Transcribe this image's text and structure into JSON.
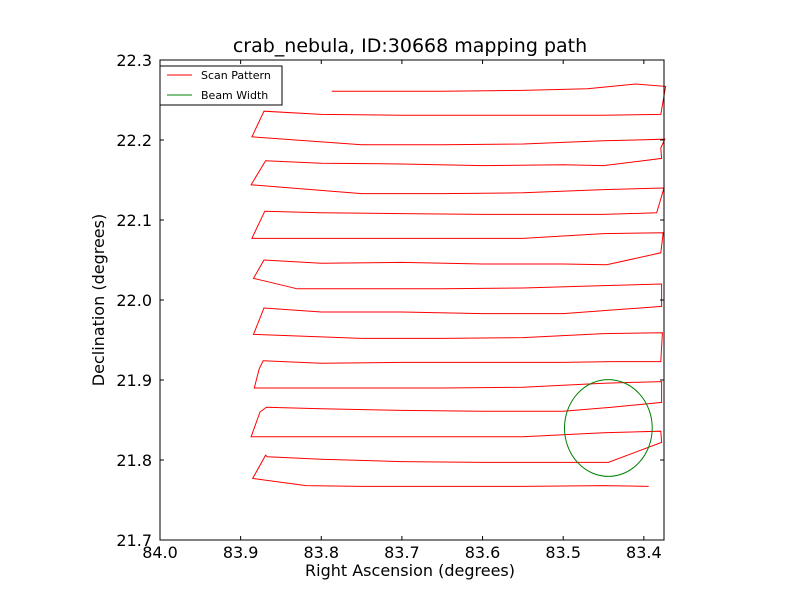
{
  "chart_data": {
    "type": "line",
    "title": "crab_nebula, ID:30668 mapping path",
    "xlabel": "Right Ascension (degrees)",
    "ylabel": "Declination (degrees)",
    "xlim": [
      84.0,
      83.375
    ],
    "ylim": [
      21.7,
      22.3
    ],
    "x_inverted": true,
    "xticks": [
      84.0,
      83.9,
      83.8,
      83.7,
      83.6,
      83.5,
      83.4
    ],
    "xtick_labels": [
      "84.0",
      "83.9",
      "83.8",
      "83.7",
      "83.6",
      "83.5",
      "83.4"
    ],
    "yticks": [
      21.7,
      21.8,
      21.9,
      22.0,
      22.1,
      22.2,
      22.3
    ],
    "ytick_labels": [
      "21.7",
      "21.8",
      "21.9",
      "22.0",
      "22.1",
      "22.2",
      "22.3"
    ],
    "grid": false,
    "legend": {
      "placement": "upper-left",
      "entries": [
        {
          "label": "Scan Pattern",
          "color": "#ff0000"
        },
        {
          "label": "Beam Width",
          "color": "#008000"
        }
      ]
    },
    "series": [
      {
        "name": "Scan Pattern",
        "color": "#ff0000",
        "points": [
          [
            83.394,
            21.767
          ],
          [
            83.45,
            21.768
          ],
          [
            83.55,
            21.767
          ],
          [
            83.65,
            21.767
          ],
          [
            83.75,
            21.767
          ],
          [
            83.819,
            21.768
          ],
          [
            83.885,
            21.777
          ],
          [
            83.869,
            21.806
          ],
          [
            83.867,
            21.804
          ],
          [
            83.8,
            21.801
          ],
          [
            83.7,
            21.798
          ],
          [
            83.6,
            21.797
          ],
          [
            83.5,
            21.797
          ],
          [
            83.444,
            21.797
          ],
          [
            83.378,
            21.822
          ],
          [
            83.379,
            21.836
          ],
          [
            83.45,
            21.834
          ],
          [
            83.55,
            21.829
          ],
          [
            83.65,
            21.829
          ],
          [
            83.75,
            21.829
          ],
          [
            83.887,
            21.829
          ],
          [
            83.876,
            21.86
          ],
          [
            83.868,
            21.866
          ],
          [
            83.8,
            21.864
          ],
          [
            83.7,
            21.862
          ],
          [
            83.6,
            21.861
          ],
          [
            83.5,
            21.861
          ],
          [
            83.44,
            21.866
          ],
          [
            83.378,
            21.872
          ],
          [
            83.378,
            21.898
          ],
          [
            83.45,
            21.896
          ],
          [
            83.55,
            21.891
          ],
          [
            83.65,
            21.89
          ],
          [
            83.75,
            21.89
          ],
          [
            83.883,
            21.89
          ],
          [
            83.877,
            21.914
          ],
          [
            83.872,
            21.924
          ],
          [
            83.8,
            21.921
          ],
          [
            83.7,
            21.922
          ],
          [
            83.6,
            21.922
          ],
          [
            83.5,
            21.922
          ],
          [
            83.44,
            21.923
          ],
          [
            83.379,
            21.923
          ],
          [
            83.377,
            21.959
          ],
          [
            83.45,
            21.958
          ],
          [
            83.55,
            21.953
          ],
          [
            83.65,
            21.952
          ],
          [
            83.75,
            21.952
          ],
          [
            83.884,
            21.957
          ],
          [
            83.871,
            21.99
          ],
          [
            83.8,
            21.985
          ],
          [
            83.7,
            21.985
          ],
          [
            83.6,
            21.983
          ],
          [
            83.5,
            21.983
          ],
          [
            83.378,
            21.992
          ],
          [
            83.378,
            22.02
          ],
          [
            83.45,
            22.018
          ],
          [
            83.55,
            22.015
          ],
          [
            83.65,
            22.014
          ],
          [
            83.75,
            22.014
          ],
          [
            83.83,
            22.014
          ],
          [
            83.871,
            22.024
          ],
          [
            83.884,
            22.027
          ],
          [
            83.871,
            22.05
          ],
          [
            83.8,
            22.046
          ],
          [
            83.7,
            22.047
          ],
          [
            83.6,
            22.045
          ],
          [
            83.5,
            22.045
          ],
          [
            83.446,
            22.044
          ],
          [
            83.379,
            22.059
          ],
          [
            83.376,
            22.084
          ],
          [
            83.45,
            22.083
          ],
          [
            83.55,
            22.077
          ],
          [
            83.65,
            22.077
          ],
          [
            83.75,
            22.077
          ],
          [
            83.886,
            22.077
          ],
          [
            83.87,
            22.111
          ],
          [
            83.8,
            22.109
          ],
          [
            83.7,
            22.108
          ],
          [
            83.6,
            22.107
          ],
          [
            83.5,
            22.107
          ],
          [
            83.45,
            22.107
          ],
          [
            83.384,
            22.109
          ],
          [
            83.375,
            22.14
          ],
          [
            83.45,
            22.138
          ],
          [
            83.55,
            22.134
          ],
          [
            83.65,
            22.133
          ],
          [
            83.75,
            22.133
          ],
          [
            83.887,
            22.144
          ],
          [
            83.869,
            22.174
          ],
          [
            83.8,
            22.171
          ],
          [
            83.7,
            22.17
          ],
          [
            83.6,
            22.168
          ],
          [
            83.5,
            22.169
          ],
          [
            83.45,
            22.168
          ],
          [
            83.378,
            22.177
          ],
          [
            83.379,
            22.19
          ],
          [
            83.374,
            22.201
          ],
          [
            83.45,
            22.199
          ],
          [
            83.55,
            22.195
          ],
          [
            83.65,
            22.194
          ],
          [
            83.75,
            22.194
          ],
          [
            83.886,
            22.204
          ],
          [
            83.871,
            22.236
          ],
          [
            83.8,
            22.232
          ],
          [
            83.7,
            22.231
          ],
          [
            83.6,
            22.231
          ],
          [
            83.5,
            22.231
          ],
          [
            83.45,
            22.231
          ],
          [
            83.379,
            22.232
          ],
          [
            83.373,
            22.267
          ],
          [
            83.41,
            22.27
          ],
          [
            83.47,
            22.264
          ],
          [
            83.55,
            22.262
          ],
          [
            83.65,
            22.261
          ],
          [
            83.75,
            22.261
          ],
          [
            83.787,
            22.261
          ]
        ]
      },
      {
        "name": "Beam Width",
        "color": "#008000",
        "shape": "circle",
        "center": [
          83.444,
          21.84
        ],
        "radius_ra": 0.0544,
        "radius_dec": 0.0605
      }
    ]
  }
}
